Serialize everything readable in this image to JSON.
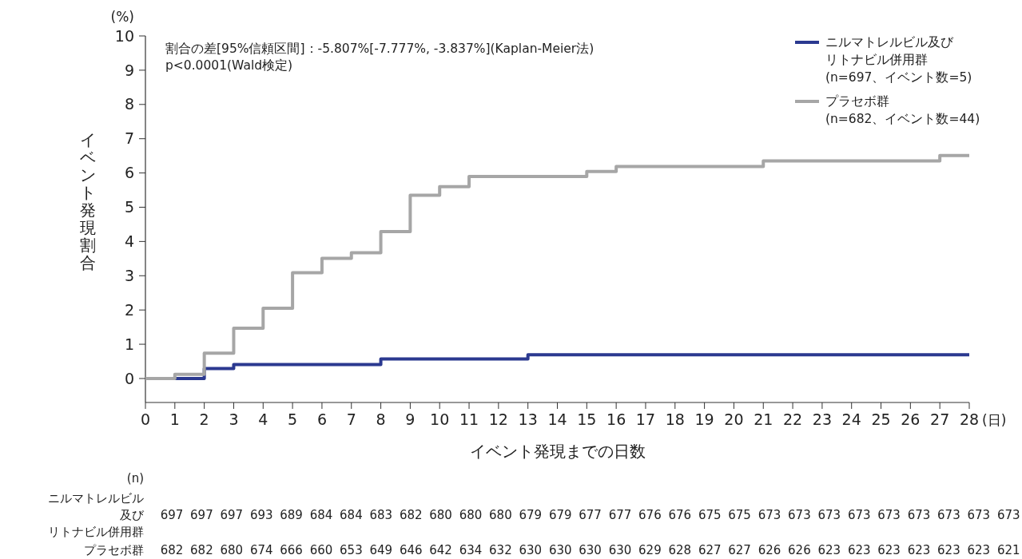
{
  "chart_data": {
    "type": "step",
    "xlabel": "イベント発現までの日数",
    "ylabel": "イベント発現割合",
    "xlim": [
      0,
      28
    ],
    "xticks": [
      0,
      1,
      2,
      3,
      4,
      5,
      6,
      7,
      8,
      9,
      10,
      11,
      12,
      13,
      14,
      15,
      16,
      17,
      18,
      19,
      20,
      21,
      22,
      23,
      24,
      25,
      26,
      27,
      28
    ],
    "ylim": [
      -0.7,
      10
    ],
    "yticks": [
      0,
      1,
      2,
      3,
      4,
      5,
      6,
      7,
      8,
      9,
      10
    ],
    "legend": "top right",
    "grid": false,
    "series": [
      {
        "name": "ニルマトレルビル及びリトナビル併用群(n=697、イベント数=5)",
        "color": "#2b3990",
        "x": [
          0,
          2,
          3,
          8,
          13,
          28
        ],
        "values": [
          0,
          0.29,
          0.41,
          0.57,
          0.69,
          0.69
        ]
      },
      {
        "name": "プラセボ群(n=682、イベント数=44)",
        "color": "#a6a6a6",
        "x": [
          0,
          1,
          2,
          3,
          4,
          5,
          6,
          7,
          8,
          9,
          10,
          11,
          15,
          16,
          21,
          27,
          28
        ],
        "values": [
          0,
          0.12,
          0.74,
          1.47,
          2.05,
          3.09,
          3.51,
          3.67,
          4.29,
          5.35,
          5.6,
          5.9,
          6.04,
          6.19,
          6.35,
          6.51,
          6.51
        ]
      }
    ],
    "annotations": [
      "割合の差[95%信頼区間]：-5.807%[-7.777%, -3.837%](Kaplan-Meier法)\np<0.0001(Wald検定)",
      "(%)",
      "(日)",
      "(n)",
      "ニルマトレルビル",
      "及び",
      "リトナビル併用群",
      "697 697 697 693 689 684 684 683 682 680 680 680 679 679 677 677 676 676 675 675 673 673 673 673 673 673 673 673 673",
      "プラセボ群",
      "682 682 680 674 666 660 653 649 646 642 634 632 630 630 630 630 629 628 627 627 626 626 623 623 623 623 623 623 621"
    ]
  }
}
